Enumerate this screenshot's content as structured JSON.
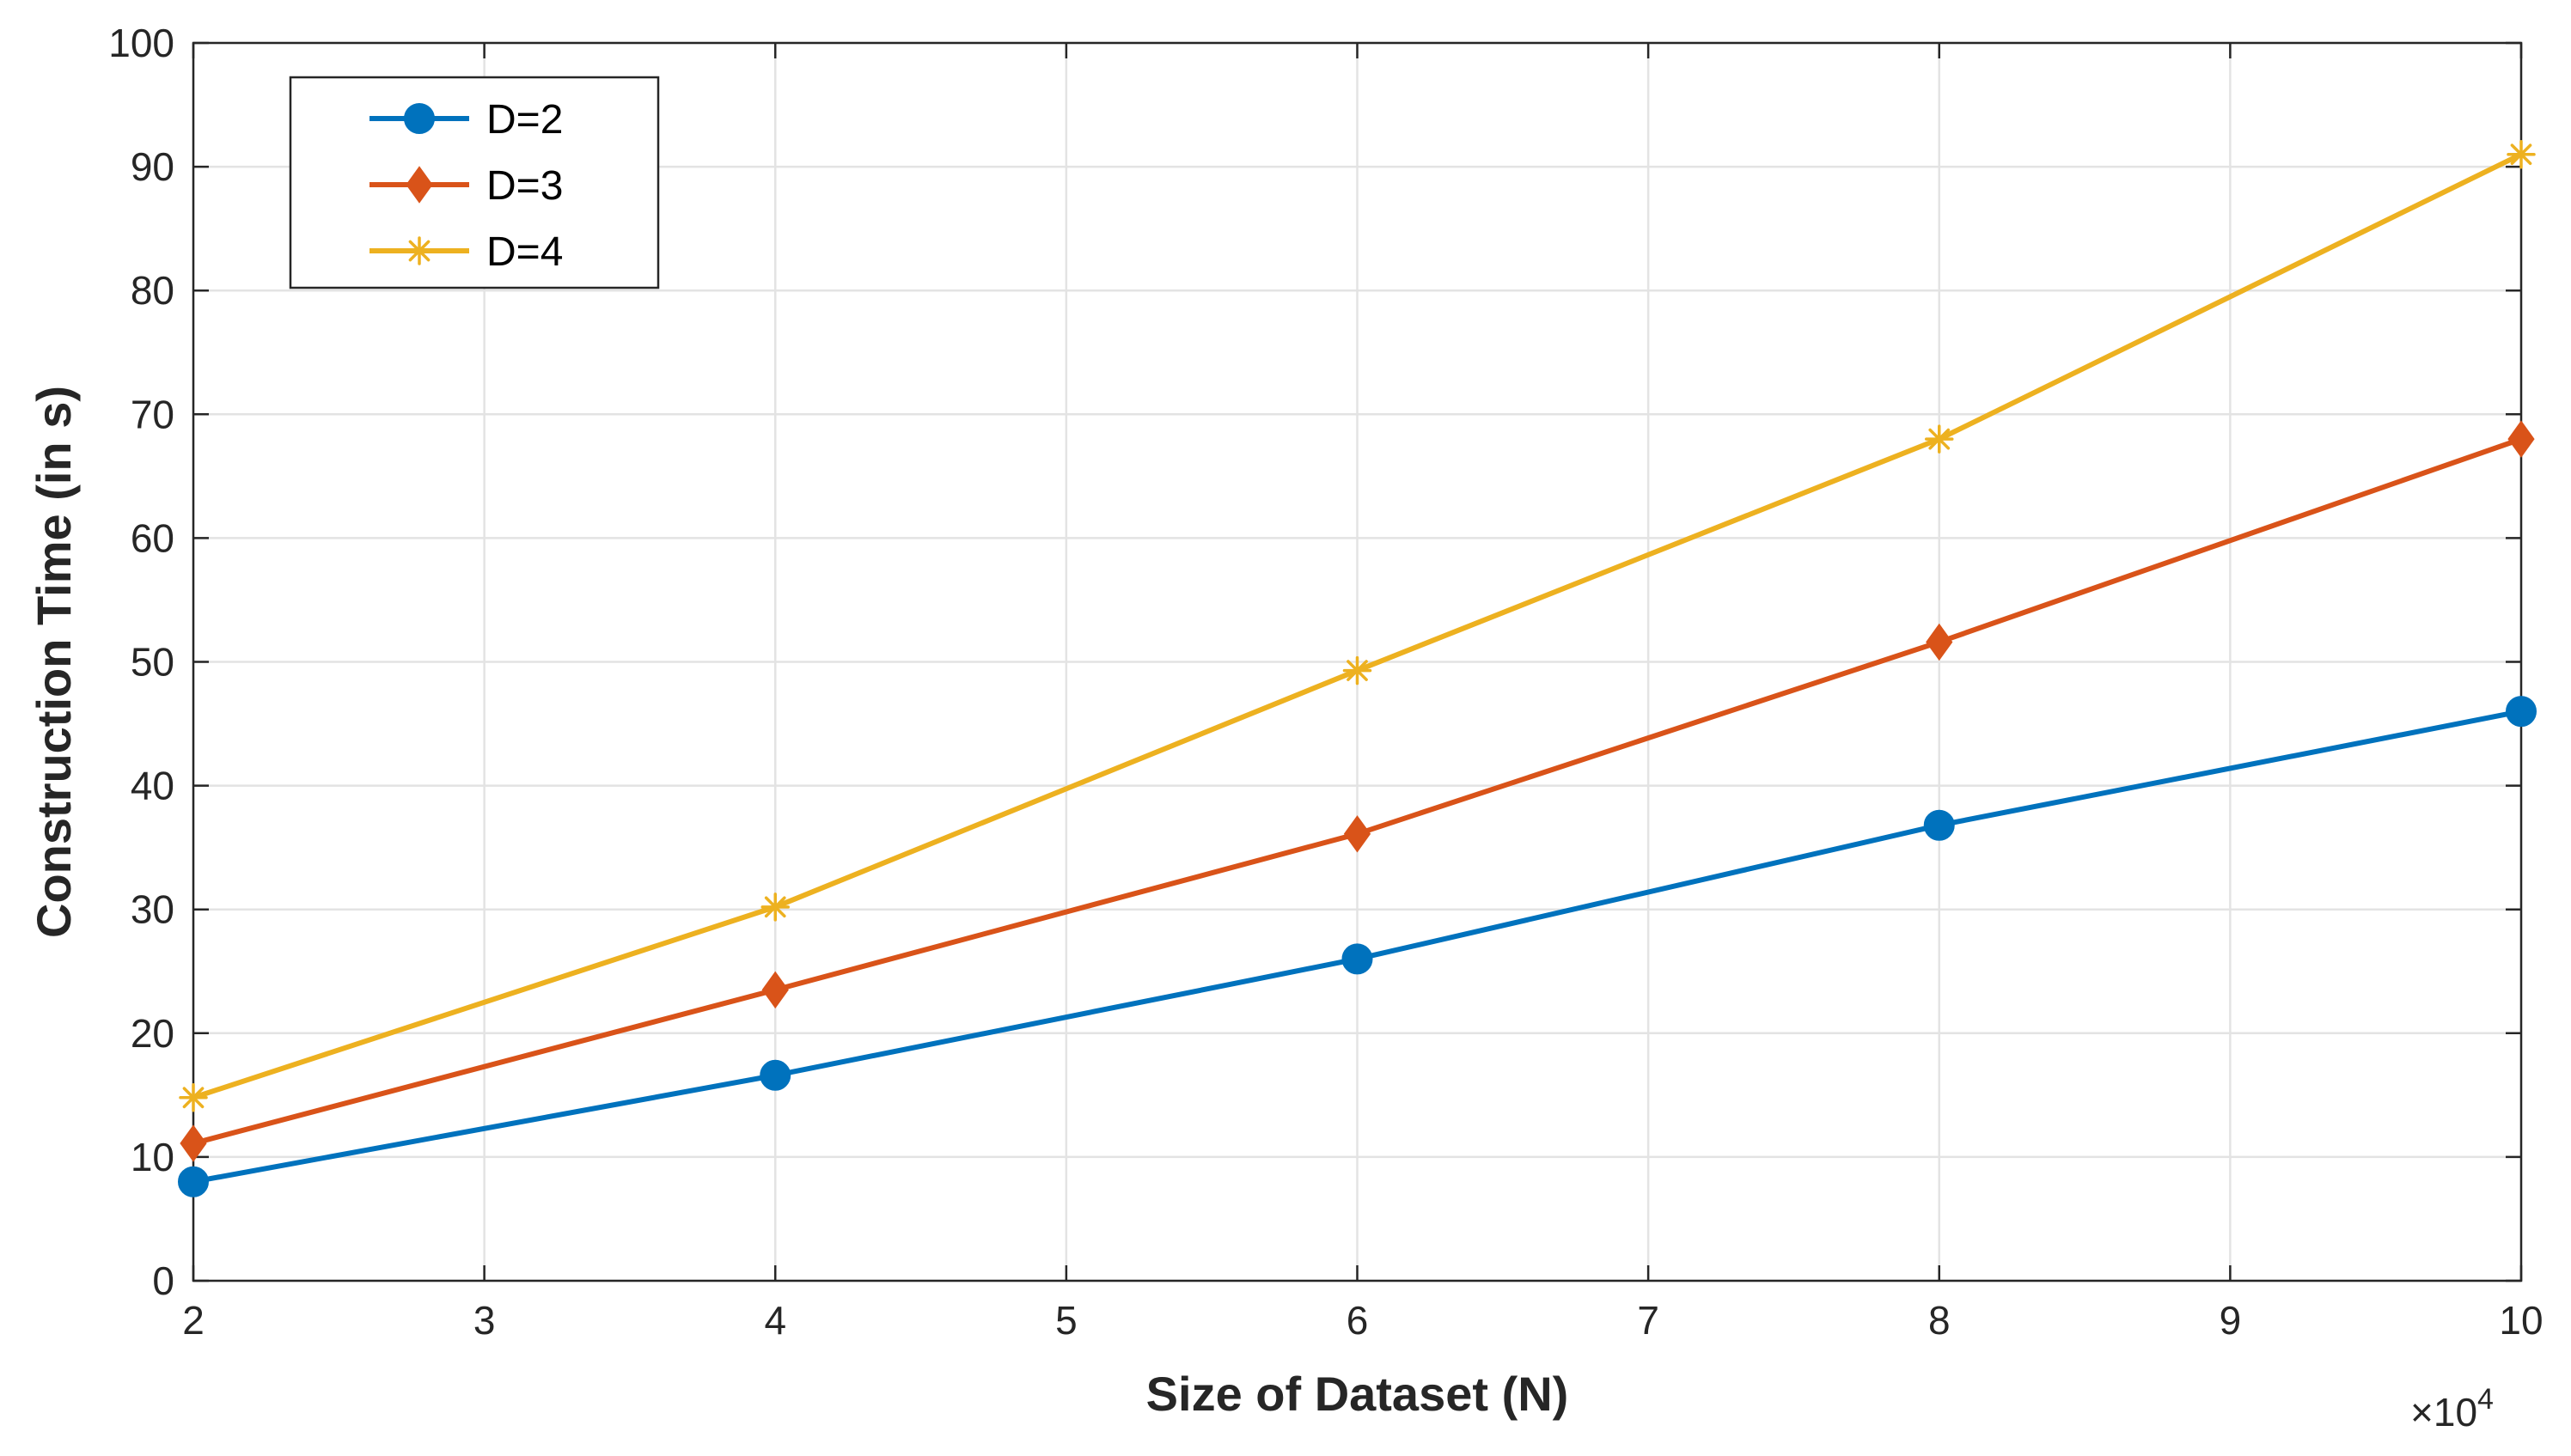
{
  "chart_data": {
    "type": "line",
    "xlabel": "Size of Dataset (N)",
    "ylabel": "Construction Time (in s)",
    "x_exponent": {
      "base": "×10",
      "power": "4"
    },
    "xlim": [
      2,
      10
    ],
    "ylim": [
      0,
      100
    ],
    "xticks": [
      2,
      3,
      4,
      5,
      6,
      7,
      8,
      9,
      10
    ],
    "yticks": [
      0,
      10,
      20,
      30,
      40,
      50,
      60,
      70,
      80,
      90,
      100
    ],
    "grid": true,
    "legend_position": "top-left",
    "x": [
      2,
      4,
      6,
      8,
      10
    ],
    "series": [
      {
        "name": "D=2",
        "color": "#0072BD",
        "marker": "circle",
        "values": [
          8.0,
          16.6,
          26.0,
          36.8,
          46.0
        ]
      },
      {
        "name": "D=3",
        "color": "#D95319",
        "marker": "diamond",
        "values": [
          11.1,
          23.5,
          36.1,
          51.6,
          68.0
        ]
      },
      {
        "name": "D=4",
        "color": "#EDB120",
        "marker": "asterisk",
        "values": [
          14.8,
          30.2,
          49.3,
          68.0,
          91.0
        ]
      }
    ]
  }
}
